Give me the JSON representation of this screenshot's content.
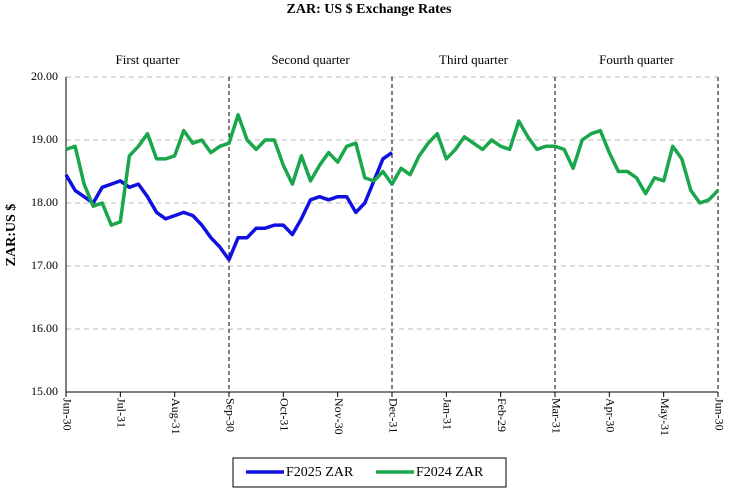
{
  "chart_data": {
    "type": "line",
    "title": "ZAR: US $ Exchange Rates",
    "y_label": "ZAR:US $",
    "annotations": [
      "First quarter",
      "Second quarter",
      "Third quarter",
      "Fourth quarter"
    ],
    "categories": [
      "Jun-30",
      null,
      null,
      null,
      null,
      null,
      "Jul-31",
      null,
      null,
      null,
      null,
      null,
      "Aug-31",
      null,
      null,
      null,
      null,
      null,
      "Sep-30",
      null,
      null,
      null,
      null,
      null,
      "Oct-31",
      null,
      null,
      null,
      null,
      null,
      "Nov-30",
      null,
      null,
      null,
      null,
      null,
      "Dec-31",
      null,
      null,
      null,
      null,
      null,
      "Jan-31",
      null,
      null,
      null,
      null,
      null,
      "Feb-29",
      null,
      null,
      null,
      null,
      null,
      "Mar-31",
      null,
      null,
      null,
      null,
      null,
      "Apr-30",
      null,
      null,
      null,
      null,
      null,
      "May-31",
      null,
      null,
      null,
      null,
      null,
      "Jun-30"
    ],
    "series": [
      {
        "name": "F2025 ZAR",
        "color": "#1010e0",
        "values": [
          18.45,
          18.2,
          18.1,
          18.0,
          18.25,
          18.3,
          18.35,
          18.25,
          18.3,
          18.1,
          17.85,
          17.75,
          17.8,
          17.85,
          17.8,
          17.65,
          17.45,
          17.3,
          17.1,
          17.45,
          17.45,
          17.6,
          17.6,
          17.65,
          17.65,
          17.5,
          17.75,
          18.05,
          18.1,
          18.05,
          18.1,
          18.1,
          17.85,
          18.0,
          18.35,
          18.7,
          18.8,
          null,
          null,
          null,
          null,
          null,
          null,
          null,
          null,
          null,
          null,
          null,
          null,
          null,
          null,
          null,
          null,
          null,
          null,
          null,
          null,
          null,
          null,
          null,
          null,
          null,
          null,
          null,
          null,
          null,
          null,
          null,
          null,
          null,
          null,
          null,
          null
        ]
      },
      {
        "name": "F2024 ZAR",
        "color": "#1aa64a",
        "values": [
          18.85,
          18.9,
          18.3,
          17.95,
          18.0,
          17.65,
          17.7,
          18.75,
          18.9,
          19.1,
          18.7,
          18.7,
          18.75,
          19.15,
          18.95,
          19.0,
          18.8,
          18.9,
          18.95,
          19.4,
          19.0,
          18.85,
          19.0,
          19.0,
          18.6,
          18.3,
          18.75,
          18.35,
          18.6,
          18.8,
          18.65,
          18.9,
          18.95,
          18.4,
          18.35,
          18.5,
          18.3,
          18.55,
          18.45,
          18.75,
          18.95,
          19.1,
          18.7,
          18.85,
          19.05,
          18.95,
          18.85,
          19.0,
          18.9,
          18.85,
          19.3,
          19.05,
          18.85,
          18.9,
          18.9,
          18.85,
          18.55,
          19.0,
          19.1,
          19.15,
          18.8,
          18.5,
          18.5,
          18.4,
          18.15,
          18.4,
          18.35,
          18.9,
          18.7,
          18.2,
          18.0,
          18.05,
          18.2
        ]
      }
    ],
    "ylim": [
      15,
      20
    ],
    "yticks": [
      {
        "value": 15,
        "label": "15.00"
      },
      {
        "value": 16,
        "label": "16.00"
      },
      {
        "value": 17,
        "label": "17.00"
      },
      {
        "value": 18,
        "label": "18.00"
      },
      {
        "value": 19,
        "label": "19.00"
      },
      {
        "value": 20,
        "label": "20.00"
      }
    ],
    "grid": true,
    "legend": "bottom"
  }
}
